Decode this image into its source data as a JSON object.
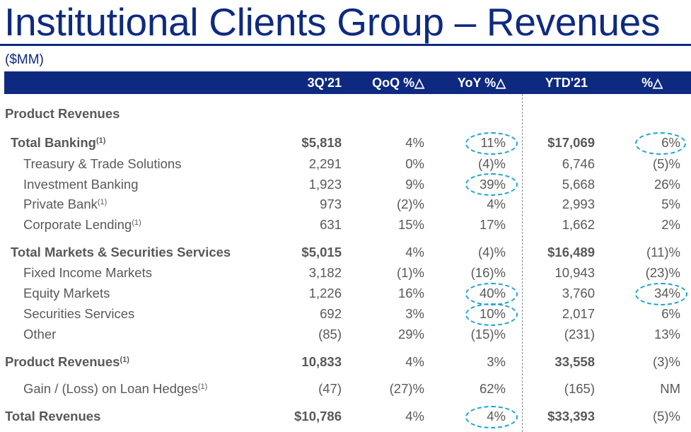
{
  "title": "Institutional Clients Group – Revenues",
  "units": "($MM)",
  "columns": [
    "3Q'21",
    "QoQ %△",
    "YoY %△",
    "YTD'21",
    "%△"
  ],
  "section_label": "Product Revenues",
  "footnote_marker": "(1)",
  "rows": [
    {
      "label": "Total Banking",
      "fn": true,
      "cells": [
        "$5,818",
        "4%",
        "11%",
        "$17,069",
        "6%"
      ]
    },
    {
      "label": "Treasury & Trade Solutions",
      "fn": false,
      "cells": [
        "2,291",
        "0%",
        "(4)%",
        "6,746",
        "(5)%"
      ]
    },
    {
      "label": "Investment Banking",
      "fn": false,
      "cells": [
        "1,923",
        "9%",
        "39%",
        "5,668",
        "26%"
      ]
    },
    {
      "label": "Private Bank",
      "fn": true,
      "cells": [
        "973",
        "(2)%",
        "4%",
        "2,993",
        "5%"
      ]
    },
    {
      "label": "Corporate Lending",
      "fn": true,
      "cells": [
        "631",
        "15%",
        "17%",
        "1,662",
        "2%"
      ]
    },
    {
      "label": "Total Markets & Securities Services",
      "fn": false,
      "cells": [
        "$5,015",
        "4%",
        "(4)%",
        "$16,489",
        "(11)%"
      ]
    },
    {
      "label": "Fixed Income Markets",
      "fn": false,
      "cells": [
        "3,182",
        "(1)%",
        "(16)%",
        "10,943",
        "(23)%"
      ]
    },
    {
      "label": "Equity Markets",
      "fn": false,
      "cells": [
        "1,226",
        "16%",
        "40%",
        "3,760",
        "34%"
      ]
    },
    {
      "label": "Securities Services",
      "fn": false,
      "cells": [
        "692",
        "3%",
        "10%",
        "2,017",
        "6%"
      ]
    },
    {
      "label": "Other",
      "fn": false,
      "cells": [
        "(85)",
        "29%",
        "(15)%",
        "(231)",
        "13%"
      ]
    },
    {
      "label": "Product Revenues",
      "fn": true,
      "cells": [
        "10,833",
        "4%",
        "3%",
        "33,558",
        "(3)%"
      ]
    },
    {
      "label": "Gain / (Loss) on Loan Hedges",
      "fn": true,
      "cells": [
        "(47)",
        "(27)%",
        "62%",
        "(165)",
        "NM"
      ]
    },
    {
      "label": "Total Revenues",
      "fn": false,
      "cells": [
        "$10,786",
        "4%",
        "4%",
        "$33,393",
        "(5)%"
      ]
    }
  ]
}
